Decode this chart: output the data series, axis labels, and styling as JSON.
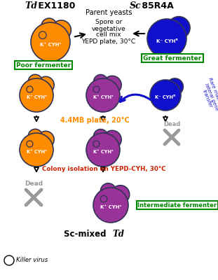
{
  "orange": "#FF8C00",
  "blue": "#1010CC",
  "purple": "#993399",
  "dark_outline": "#333355",
  "gray": "#999999",
  "green_text": "#008800",
  "red_text": "#CC2200",
  "white": "#FFFFFF",
  "black": "#000000",
  "bg": "#FFFFFF",
  "label_poor": "Poor fermenter",
  "label_great": "Great fermenter",
  "label_intermediate": "Intermediate fermenter",
  "text_parent": "Parent yeasts",
  "text_spore_1": "Spore or",
  "text_spore_2": "vegetative",
  "text_spore_3": "cell mix",
  "text_spore_4": "YEPD plate, 30°C",
  "text_4mb": "4.4MB plate, 20°C",
  "text_colony": "Colony isolation on YEPD-CYH, 30°C",
  "text_rare": "Rare mating or\nlateral gene\ntransfer",
  "text_dead": "Dead",
  "text_kcyhs": "K⁺ CYHˢ",
  "text_kcyhr": "K⁻ CYHᴿ",
  "title_td_italic": "Td",
  "title_td_bold": " EX1180",
  "title_sc_italic": "Sc",
  "title_sc_bold": " 85R4A",
  "label_scmixed": "Sc-mixed ",
  "label_td_italic": "Td",
  "label_killer": "Killer virus"
}
